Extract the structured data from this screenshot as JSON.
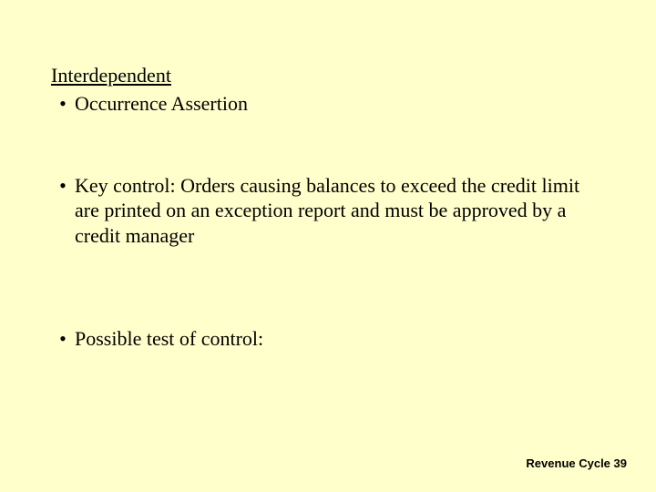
{
  "slide": {
    "heading": "Interdependent",
    "bullets": [
      {
        "text": "Occurrence Assertion"
      },
      {
        "text": "Key control: Orders causing balances to exceed the credit limit are printed on an exception report and must be approved by a credit manager"
      },
      {
        "text": "Possible test of control:"
      }
    ],
    "footer": "Revenue Cycle 39"
  },
  "style": {
    "background_color": "#ffffcc",
    "text_color": "#000000",
    "body_font": "Times New Roman",
    "footer_font": "Arial",
    "heading_fontsize": 22,
    "bullet_fontsize": 22,
    "footer_fontsize": 13,
    "bullet_marker": "•"
  }
}
